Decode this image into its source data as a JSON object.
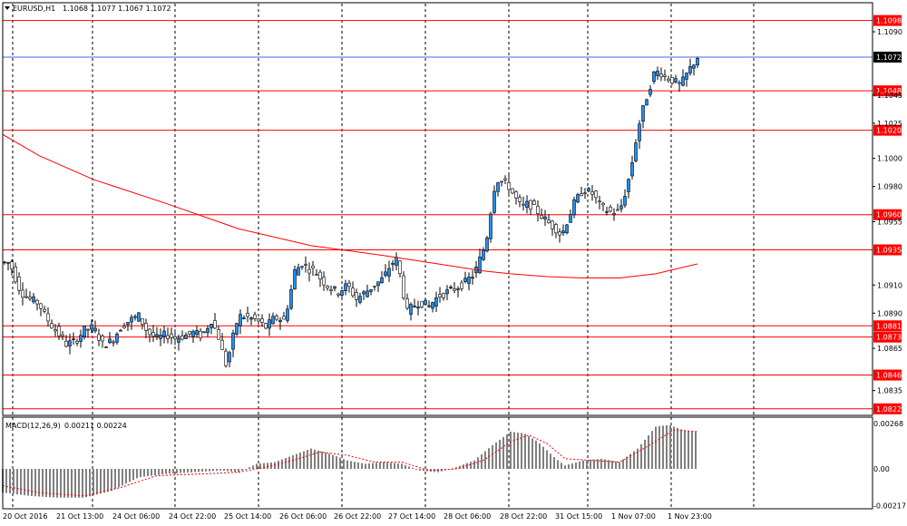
{
  "header": {
    "symbol": "EURUSD,H1",
    "ohlc": "1.1068 1.1077 1.1067 1.1072",
    "menu_icon": "triangle-down-icon"
  },
  "colors": {
    "background": "#ffffff",
    "grid": "#000000",
    "level_line": "#ff0000",
    "level_label_bg": "#ff0000",
    "current_price_line": "#4169e1",
    "current_price_label_bg": "#000000",
    "candle_body": "#1e90ff",
    "candle_outline": "#000000",
    "moving_average": "#ff0000",
    "macd_histogram": "#808080",
    "macd_signal": "#ff0000"
  },
  "chart_data": [
    {
      "type": "candlestick",
      "title": "EURUSD,H1",
      "ylim": [
        1.0818,
        1.111
      ],
      "x_tick_labels": [
        "20 Oct 2016",
        "21 Oct 13:00",
        "24 Oct 06:00",
        "24 Oct 22:00",
        "25 Oct 14:00",
        "26 Oct 06:00",
        "26 Oct 22:00",
        "27 Oct 14:00",
        "28 Oct 06:00",
        "28 Oct 22:00",
        "31 Oct 15:00",
        "1 Nov 07:00",
        "1 Nov 23:00"
      ],
      "y_tick_labels": [
        1.109,
        1.1045,
        1.1025,
        1.1,
        1.098,
        1.0955,
        1.091,
        1.089,
        1.0865,
        1.0835
      ],
      "current_price": 1.1072,
      "horizontal_levels": [
        1.1098,
        1.1048,
        1.102,
        1.096,
        1.0935,
        1.0881,
        1.0873,
        1.0846,
        1.0822
      ],
      "close_path": [
        [
          0,
          1.0926
        ],
        [
          8,
          1.0926
        ],
        [
          12,
          1.0918
        ],
        [
          20,
          1.0905
        ],
        [
          30,
          1.09
        ],
        [
          40,
          1.0897
        ],
        [
          45,
          1.089
        ],
        [
          55,
          1.088
        ],
        [
          62,
          1.0875
        ],
        [
          70,
          1.0868
        ],
        [
          80,
          1.087
        ],
        [
          90,
          1.0878
        ],
        [
          100,
          1.088
        ],
        [
          110,
          1.0868
        ],
        [
          120,
          1.087
        ],
        [
          130,
          1.088
        ],
        [
          140,
          1.0885
        ],
        [
          150,
          1.0888
        ],
        [
          160,
          1.0876
        ],
        [
          170,
          1.0872
        ],
        [
          180,
          1.0875
        ],
        [
          190,
          1.0872
        ],
        [
          200,
          1.0874
        ],
        [
          210,
          1.0876
        ],
        [
          220,
          1.0874
        ],
        [
          230,
          1.0885
        ],
        [
          240,
          1.087
        ],
        [
          245,
          1.0852
        ],
        [
          250,
          1.0862
        ],
        [
          255,
          1.0876
        ],
        [
          260,
          1.0888
        ],
        [
          270,
          1.0887
        ],
        [
          280,
          1.0885
        ],
        [
          290,
          1.088
        ],
        [
          300,
          1.0887
        ],
        [
          310,
          1.0885
        ],
        [
          316,
          1.09
        ],
        [
          322,
          1.092
        ],
        [
          330,
          1.0925
        ],
        [
          336,
          1.0922
        ],
        [
          344,
          1.092
        ],
        [
          350,
          1.0915
        ],
        [
          360,
          1.0908
        ],
        [
          370,
          1.0905
        ],
        [
          380,
          1.091
        ],
        [
          390,
          1.09
        ],
        [
          400,
          1.0905
        ],
        [
          410,
          1.091
        ],
        [
          420,
          1.0915
        ],
        [
          428,
          1.0925
        ],
        [
          434,
          1.0928
        ],
        [
          440,
          1.0912
        ],
        [
          445,
          1.089
        ],
        [
          452,
          1.0895
        ],
        [
          460,
          1.0898
        ],
        [
          470,
          1.0895
        ],
        [
          480,
          1.0902
        ],
        [
          490,
          1.0905
        ],
        [
          500,
          1.0908
        ],
        [
          510,
          1.0912
        ],
        [
          520,
          1.0918
        ],
        [
          530,
          1.0935
        ],
        [
          536,
          1.095
        ],
        [
          540,
          1.0975
        ],
        [
          545,
          1.0985
        ],
        [
          552,
          1.0983
        ],
        [
          558,
          1.098
        ],
        [
          565,
          1.0972
        ],
        [
          572,
          1.0965
        ],
        [
          580,
          1.0968
        ],
        [
          590,
          1.0962
        ],
        [
          600,
          1.0955
        ],
        [
          610,
          1.095
        ],
        [
          616,
          1.0945
        ],
        [
          622,
          1.0955
        ],
        [
          630,
          1.0968
        ],
        [
          640,
          1.0978
        ],
        [
          650,
          1.0975
        ],
        [
          660,
          1.0965
        ],
        [
          670,
          1.0962
        ],
        [
          680,
          1.0962
        ],
        [
          686,
          1.0975
        ],
        [
          692,
          1.099
        ],
        [
          700,
          1.102
        ],
        [
          706,
          1.1035
        ],
        [
          712,
          1.1048
        ],
        [
          718,
          1.106
        ],
        [
          724,
          1.1062
        ],
        [
          730,
          1.1058
        ],
        [
          740,
          1.1055
        ],
        [
          746,
          1.1052
        ],
        [
          750,
          1.1055
        ],
        [
          756,
          1.1062
        ],
        [
          762,
          1.1068
        ],
        [
          766,
          1.1072
        ]
      ],
      "moving_average": [
        [
          0,
          1.1017
        ],
        [
          40,
          1.1002
        ],
        [
          100,
          1.0985
        ],
        [
          180,
          1.0968
        ],
        [
          260,
          1.095
        ],
        [
          340,
          1.0938
        ],
        [
          420,
          1.0931
        ],
        [
          480,
          1.0925
        ],
        [
          530,
          1.092
        ],
        [
          560,
          1.0918
        ],
        [
          600,
          1.0916
        ],
        [
          640,
          1.0915
        ],
        [
          680,
          1.0915
        ],
        [
          720,
          1.0918
        ],
        [
          766,
          1.0925
        ]
      ]
    },
    {
      "type": "histogram",
      "title": "MACD(12,26,9)",
      "values_text": "0.00211 0.00224",
      "ylim": [
        -0.00217,
        0.00268
      ],
      "y_tick_labels": [
        0.00268,
        0.0,
        -0.00217
      ],
      "histogram": [
        [
          0,
          -0.0014
        ],
        [
          30,
          -0.0016
        ],
        [
          60,
          -0.0017
        ],
        [
          90,
          -0.0017
        ],
        [
          120,
          -0.0013
        ],
        [
          150,
          -0.0005
        ],
        [
          180,
          -0.0003
        ],
        [
          210,
          -0.0002
        ],
        [
          240,
          -0.0001
        ],
        [
          260,
          -0.0002
        ],
        [
          280,
          0.0003
        ],
        [
          300,
          0.0004
        ],
        [
          320,
          0.0008
        ],
        [
          340,
          0.0012
        ],
        [
          360,
          0.0009
        ],
        [
          380,
          0.0005
        ],
        [
          400,
          0.0003
        ],
        [
          420,
          0.0004
        ],
        [
          440,
          0.0003
        ],
        [
          460,
          -0.0001
        ],
        [
          480,
          -0.0002
        ],
        [
          500,
          0.0001
        ],
        [
          520,
          0.0005
        ],
        [
          540,
          0.0014
        ],
        [
          560,
          0.0022
        ],
        [
          575,
          0.0021
        ],
        [
          590,
          0.0016
        ],
        [
          610,
          0.0006
        ],
        [
          620,
          0.0002
        ],
        [
          640,
          0.0005
        ],
        [
          660,
          0.0006
        ],
        [
          680,
          0.0004
        ],
        [
          700,
          0.0012
        ],
        [
          720,
          0.0025
        ],
        [
          735,
          0.0026
        ],
        [
          750,
          0.0023
        ],
        [
          766,
          0.0022
        ]
      ],
      "signal": [
        [
          0,
          -0.001
        ],
        [
          40,
          -0.0014
        ],
        [
          90,
          -0.0016
        ],
        [
          130,
          -0.0011
        ],
        [
          170,
          -0.0004
        ],
        [
          220,
          -0.0003
        ],
        [
          260,
          -0.0002
        ],
        [
          290,
          0.0001
        ],
        [
          320,
          0.0005
        ],
        [
          350,
          0.001
        ],
        [
          380,
          0.0008
        ],
        [
          410,
          0.0004
        ],
        [
          440,
          0.0004
        ],
        [
          470,
          -0.0001
        ],
        [
          500,
          0.0
        ],
        [
          530,
          0.0005
        ],
        [
          560,
          0.0016
        ],
        [
          580,
          0.002
        ],
        [
          600,
          0.0015
        ],
        [
          620,
          0.0006
        ],
        [
          650,
          0.0005
        ],
        [
          680,
          0.0004
        ],
        [
          710,
          0.0013
        ],
        [
          740,
          0.0023
        ],
        [
          766,
          0.0022
        ]
      ]
    }
  ]
}
